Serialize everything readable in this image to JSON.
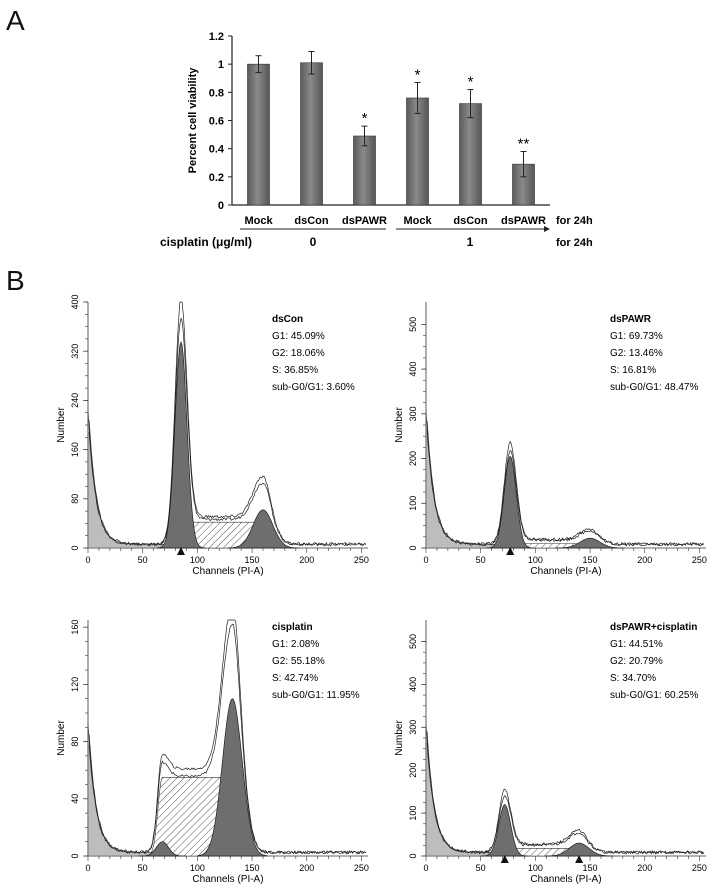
{
  "panels": {
    "a": "A",
    "b": "B"
  },
  "chart_data": [
    {
      "type": "bar",
      "ylabel": "Percent cell viability",
      "ylim": [
        0,
        1.2
      ],
      "yticks": [
        "0",
        "0.2",
        "0.4",
        "0.6",
        "0.8",
        "1",
        "1.2"
      ],
      "categories": [
        "Mock",
        "dsCon",
        "dsPAWR",
        "Mock",
        "dsCon",
        "dsPAWR"
      ],
      "values": [
        1.0,
        1.01,
        0.49,
        0.76,
        0.72,
        0.29
      ],
      "errors": [
        0.06,
        0.08,
        0.07,
        0.11,
        0.1,
        0.09
      ],
      "significance": [
        "",
        "",
        "*",
        "*",
        "*",
        "**"
      ],
      "treatment_label": "for 24h",
      "cisplatin_label": "cisplatin (μg/ml)",
      "cisplatin_doses": [
        "0",
        "1"
      ],
      "cisplatin_suffix": "for 24h"
    },
    {
      "type": "histogram",
      "title": "dsCon",
      "stats": [
        "G1: 45.09%",
        "G2: 18.06%",
        "S: 36.85%",
        "sub-G0/G1: 3.60%"
      ],
      "xlabel": "Channels (PI-A)",
      "ylabel": "Number",
      "xlim": [
        0,
        256
      ],
      "ylim": [
        0,
        400
      ],
      "xticks": [
        "0",
        "50",
        "100",
        "150",
        "200",
        "250"
      ],
      "yticks": [
        "0",
        "80",
        "160",
        "240",
        "320",
        "400"
      ],
      "g1_peak": {
        "x": 85,
        "height": 335
      },
      "g2_peak": {
        "x": 160,
        "height": 62
      },
      "s_height": 42,
      "markers": [
        85
      ]
    },
    {
      "type": "histogram",
      "title": "dsPAWR",
      "stats": [
        "G1: 69.73%",
        "G2: 13.46%",
        "S: 16.81%",
        "sub-G0/G1: 48.47%"
      ],
      "xlabel": "Channels (PI-A)",
      "ylabel": "Number",
      "xlim": [
        0,
        256
      ],
      "ylim": [
        0,
        550
      ],
      "xticks": [
        "0",
        "50",
        "100",
        "150",
        "200",
        "250"
      ],
      "yticks": [
        "0",
        "100",
        "200",
        "300",
        "400",
        "500"
      ],
      "g1_peak": {
        "x": 77,
        "height": 205
      },
      "g2_peak": {
        "x": 150,
        "height": 22
      },
      "s_height": 10,
      "markers": [
        77
      ]
    },
    {
      "type": "histogram",
      "title": "cisplatin",
      "stats": [
        "G1: 2.08%",
        "G2: 55.18%",
        "S: 42.74%",
        "sub-G0/G1: 11.95%"
      ],
      "xlabel": "Channels (PI-A)",
      "ylabel": "Number",
      "xlim": [
        0,
        256
      ],
      "ylim": [
        0,
        165
      ],
      "xticks": [
        "0",
        "50",
        "100",
        "150",
        "200",
        "250"
      ],
      "yticks": [
        "0",
        "40",
        "80",
        "120",
        "160"
      ],
      "g1_peak": {
        "x": 68,
        "height": 10
      },
      "g2_peak": {
        "x": 132,
        "height": 110
      },
      "s_height": 55,
      "markers": []
    },
    {
      "type": "histogram",
      "title": "dsPAWR+cisplatin",
      "stats": [
        "G1: 44.51%",
        "G2: 20.79%",
        "S: 34.70%",
        "sub-G0/G1: 60.25%"
      ],
      "xlabel": "Channels (PI-A)",
      "ylabel": "Number",
      "xlim": [
        0,
        256
      ],
      "ylim": [
        0,
        550
      ],
      "xticks": [
        "0",
        "50",
        "100",
        "150",
        "200",
        "250"
      ],
      "yticks": [
        "0",
        "100",
        "200",
        "300",
        "400",
        "500"
      ],
      "g1_peak": {
        "x": 72,
        "height": 120
      },
      "g2_peak": {
        "x": 140,
        "height": 30
      },
      "s_height": 18,
      "markers": [
        72,
        140
      ]
    }
  ]
}
